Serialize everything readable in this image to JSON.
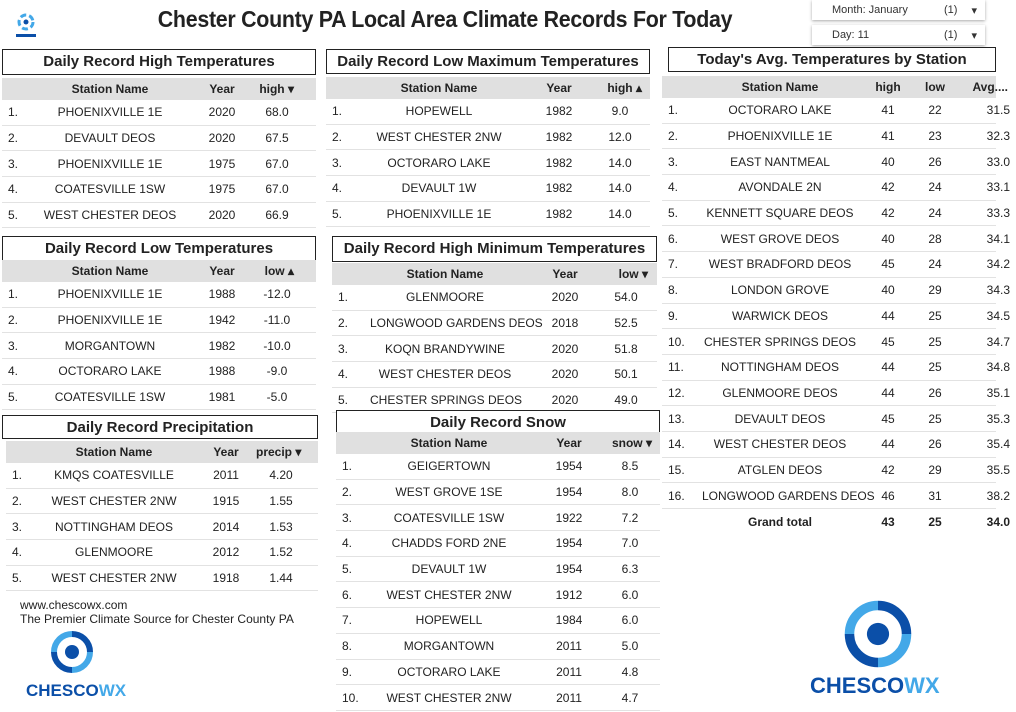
{
  "header": {
    "title": "Chester County PA Local Area Climate Records For Today",
    "logo_text": "CHESCOWX"
  },
  "filters": {
    "month": {
      "label": "Month: January",
      "count": "(1)"
    },
    "day": {
      "label": "Day: 11",
      "count": "(1)"
    }
  },
  "record_high": {
    "title": "Daily Record High Temperatures",
    "columns": [
      "Station Name",
      "Year",
      "high ▾"
    ],
    "rows": [
      [
        "1.",
        "PHOENIXVILLE 1E",
        "2020",
        "68.0"
      ],
      [
        "2.",
        "DEVAULT DEOS",
        "2020",
        "67.5"
      ],
      [
        "3.",
        "PHOENIXVILLE 1E",
        "1975",
        "67.0"
      ],
      [
        "4.",
        "COATESVILLE 1SW",
        "1975",
        "67.0"
      ],
      [
        "5.",
        "WEST CHESTER DEOS",
        "2020",
        "66.9"
      ]
    ]
  },
  "record_low_max": {
    "title": "Daily Record Low Maximum Temperatures",
    "columns": [
      "Station Name",
      "Year",
      "high ▴"
    ],
    "rows": [
      [
        "1.",
        "HOPEWELL",
        "1982",
        "9.0"
      ],
      [
        "2.",
        "WEST CHESTER 2NW",
        "1982",
        "12.0"
      ],
      [
        "3.",
        "OCTORARO LAKE",
        "1982",
        "14.0"
      ],
      [
        "4.",
        "DEVAULT 1W",
        "1982",
        "14.0"
      ],
      [
        "5.",
        "PHOENIXVILLE 1E",
        "1982",
        "14.0"
      ]
    ]
  },
  "record_low": {
    "title": "Daily Record Low Temperatures",
    "columns": [
      "Station Name",
      "Year",
      "low ▴"
    ],
    "rows": [
      [
        "1.",
        "PHOENIXVILLE 1E",
        "1988",
        "-12.0"
      ],
      [
        "2.",
        "PHOENIXVILLE 1E",
        "1942",
        "-11.0"
      ],
      [
        "3.",
        "MORGANTOWN",
        "1982",
        "-10.0"
      ],
      [
        "4.",
        "OCTORARO LAKE",
        "1988",
        "-9.0"
      ],
      [
        "5.",
        "COATESVILLE 1SW",
        "1981",
        "-5.0"
      ]
    ]
  },
  "record_high_min": {
    "title": "Daily Record High Minimum Temperatures",
    "columns": [
      "Station Name",
      "Year",
      "low ▾"
    ],
    "rows": [
      [
        "1.",
        "GLENMOORE",
        "2020",
        "54.0"
      ],
      [
        "2.",
        "LONGWOOD GARDENS DEOS",
        "2018",
        "52.5"
      ],
      [
        "3.",
        "KOQN BRANDYWINE",
        "2020",
        "51.8"
      ],
      [
        "4.",
        "WEST CHESTER DEOS",
        "2020",
        "50.1"
      ],
      [
        "5.",
        "CHESTER SPRINGS DEOS",
        "2020",
        "49.0"
      ]
    ]
  },
  "record_precip": {
    "title": "Daily Record Precipitation",
    "columns": [
      "Station Name",
      "Year",
      "precip ▾"
    ],
    "rows": [
      [
        "1.",
        "KMQS COATESVILLE",
        "2011",
        "4.20"
      ],
      [
        "2.",
        "WEST CHESTER 2NW",
        "1915",
        "1.55"
      ],
      [
        "3.",
        "NOTTINGHAM DEOS",
        "2014",
        "1.53"
      ],
      [
        "4.",
        "GLENMOORE",
        "2012",
        "1.52"
      ],
      [
        "5.",
        "WEST CHESTER 2NW",
        "1918",
        "1.44"
      ]
    ]
  },
  "record_snow": {
    "title": "Daily Record Snow",
    "columns": [
      "Station Name",
      "Year",
      "snow ▾"
    ],
    "rows": [
      [
        "1.",
        "GEIGERTOWN",
        "1954",
        "8.5"
      ],
      [
        "2.",
        "WEST GROVE 1SE",
        "1954",
        "8.0"
      ],
      [
        "3.",
        "COATESVILLE 1SW",
        "1922",
        "7.2"
      ],
      [
        "4.",
        "CHADDS FORD 2NE",
        "1954",
        "7.0"
      ],
      [
        "5.",
        "DEVAULT 1W",
        "1954",
        "6.3"
      ],
      [
        "6.",
        "WEST CHESTER 2NW",
        "1912",
        "6.0"
      ],
      [
        "7.",
        "HOPEWELL",
        "1984",
        "6.0"
      ],
      [
        "8.",
        "MORGANTOWN",
        "2011",
        "5.0"
      ],
      [
        "9.",
        "OCTORARO LAKE",
        "2011",
        "4.8"
      ],
      [
        "10.",
        "WEST CHESTER 2NW",
        "2011",
        "4.7"
      ]
    ]
  },
  "avg_temps": {
    "title": "Today's Avg. Temperatures by Station",
    "columns": [
      "Station Name",
      "high",
      "low",
      "Avg...."
    ],
    "rows": [
      [
        "1.",
        "OCTORARO LAKE",
        "41",
        "22",
        "31.5"
      ],
      [
        "2.",
        "PHOENIXVILLE 1E",
        "41",
        "23",
        "32.3"
      ],
      [
        "3.",
        "EAST NANTMEAL",
        "40",
        "26",
        "33.0"
      ],
      [
        "4.",
        "AVONDALE 2N",
        "42",
        "24",
        "33.1"
      ],
      [
        "5.",
        "KENNETT SQUARE DEOS",
        "42",
        "24",
        "33.3"
      ],
      [
        "6.",
        "WEST GROVE DEOS",
        "40",
        "28",
        "34.1"
      ],
      [
        "7.",
        "WEST BRADFORD DEOS",
        "45",
        "24",
        "34.2"
      ],
      [
        "8.",
        "LONDON GROVE",
        "40",
        "29",
        "34.3"
      ],
      [
        "9.",
        "WARWICK DEOS",
        "44",
        "25",
        "34.5"
      ],
      [
        "10.",
        "CHESTER SPRINGS DEOS",
        "45",
        "25",
        "34.7"
      ],
      [
        "11.",
        "NOTTINGHAM DEOS",
        "44",
        "25",
        "34.8"
      ],
      [
        "12.",
        "GLENMOORE DEOS",
        "44",
        "26",
        "35.1"
      ],
      [
        "13.",
        "DEVAULT DEOS",
        "45",
        "25",
        "35.3"
      ],
      [
        "14.",
        "WEST CHESTER DEOS",
        "44",
        "26",
        "35.4"
      ],
      [
        "15.",
        "ATGLEN DEOS",
        "42",
        "29",
        "35.5"
      ],
      [
        "16.",
        "LONGWOOD GARDENS DEOS",
        "46",
        "31",
        "38.2"
      ]
    ],
    "grand_total": [
      "",
      "Grand total",
      "43",
      "25",
      "34.0"
    ]
  },
  "footer": {
    "url": "www.chescowx.com",
    "tagline": "The Premier Climate Source for Chester County PA"
  },
  "colors": {
    "logo_dark": "#0b4fa8",
    "logo_light": "#43a8e8",
    "header_row": "#e0e0e0"
  }
}
